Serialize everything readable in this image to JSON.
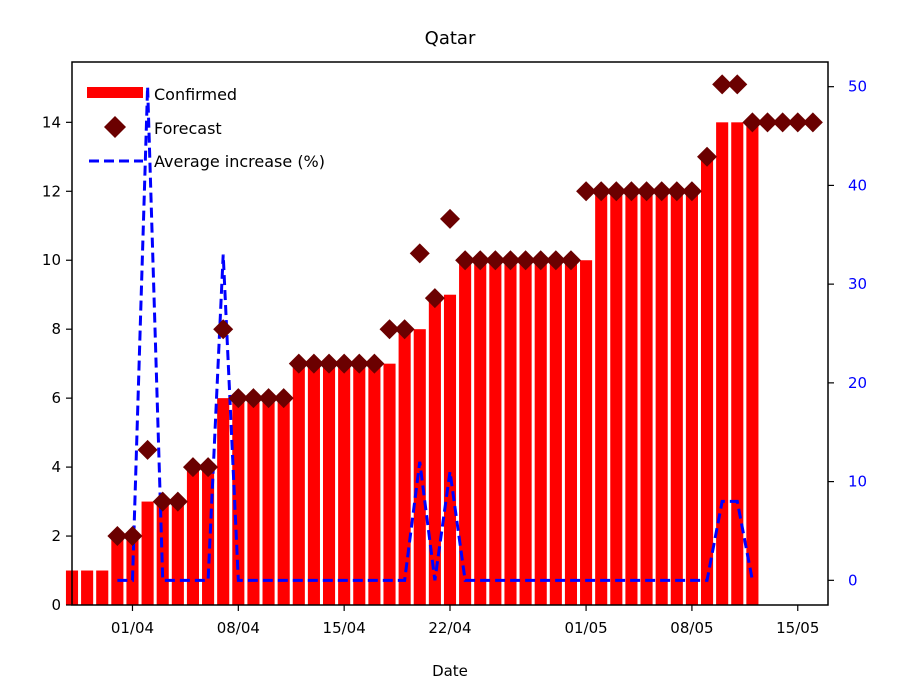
{
  "chart_data": {
    "type": "bar",
    "title": "Qatar",
    "xlabel": "Date",
    "ylabel": "",
    "y2label": "",
    "ylim": [
      0,
      15.75
    ],
    "y2lim": [
      -2.5,
      52.5
    ],
    "x_range": [
      "2020-03-28",
      "2020-05-17"
    ],
    "xticks": [
      {
        "date": "2020-04-01",
        "label": "01/04"
      },
      {
        "date": "2020-04-08",
        "label": "08/04"
      },
      {
        "date": "2020-04-15",
        "label": "15/04"
      },
      {
        "date": "2020-04-22",
        "label": "22/04"
      },
      {
        "date": "2020-05-01",
        "label": "01/05"
      },
      {
        "date": "2020-05-08",
        "label": "08/05"
      },
      {
        "date": "2020-05-15",
        "label": "15/05"
      }
    ],
    "yticks": [
      0,
      2,
      4,
      6,
      8,
      10,
      12,
      14
    ],
    "y2ticks": [
      0,
      10,
      20,
      30,
      40,
      50
    ],
    "legend_position": "upper-left",
    "grid": false,
    "colors": {
      "confirmed": "#ff0000",
      "forecast": "#6b0000",
      "average_increase": "#0000ff",
      "right_axis_ticks": "#0000ff",
      "text": "#000000"
    },
    "series": [
      {
        "name": "Confirmed",
        "kind": "bar",
        "axis": "left",
        "x": [
          "2020-03-28",
          "2020-03-29",
          "2020-03-30",
          "2020-03-31",
          "2020-04-01",
          "2020-04-02",
          "2020-04-03",
          "2020-04-04",
          "2020-04-05",
          "2020-04-06",
          "2020-04-07",
          "2020-04-08",
          "2020-04-09",
          "2020-04-10",
          "2020-04-11",
          "2020-04-12",
          "2020-04-13",
          "2020-04-14",
          "2020-04-15",
          "2020-04-16",
          "2020-04-17",
          "2020-04-18",
          "2020-04-19",
          "2020-04-20",
          "2020-04-21",
          "2020-04-22",
          "2020-04-23",
          "2020-04-24",
          "2020-04-25",
          "2020-04-26",
          "2020-04-27",
          "2020-04-28",
          "2020-04-29",
          "2020-04-30",
          "2020-05-01",
          "2020-05-02",
          "2020-05-03",
          "2020-05-04",
          "2020-05-05",
          "2020-05-06",
          "2020-05-07",
          "2020-05-08",
          "2020-05-09",
          "2020-05-10",
          "2020-05-11",
          "2020-05-12"
        ],
        "values": [
          1,
          1,
          1,
          2,
          2,
          3,
          3,
          3,
          4,
          4,
          6,
          6,
          6,
          6,
          6,
          7,
          7,
          7,
          7,
          7,
          7,
          7,
          8,
          8,
          9,
          9,
          10,
          10,
          10,
          10,
          10,
          10,
          10,
          10,
          10,
          12,
          12,
          12,
          12,
          12,
          12,
          12,
          13,
          14,
          14,
          14
        ]
      },
      {
        "name": "Forecast",
        "kind": "marker",
        "axis": "left",
        "x": [
          "2020-03-31",
          "2020-04-01",
          "2020-04-02",
          "2020-04-03",
          "2020-04-04",
          "2020-04-05",
          "2020-04-06",
          "2020-04-07",
          "2020-04-08",
          "2020-04-09",
          "2020-04-10",
          "2020-04-11",
          "2020-04-12",
          "2020-04-13",
          "2020-04-14",
          "2020-04-15",
          "2020-04-16",
          "2020-04-17",
          "2020-04-18",
          "2020-04-19",
          "2020-04-20",
          "2020-04-21",
          "2020-04-22",
          "2020-04-23",
          "2020-04-24",
          "2020-04-25",
          "2020-04-26",
          "2020-04-27",
          "2020-04-28",
          "2020-04-29",
          "2020-04-30",
          "2020-05-01",
          "2020-05-02",
          "2020-05-03",
          "2020-05-04",
          "2020-05-05",
          "2020-05-06",
          "2020-05-07",
          "2020-05-08",
          "2020-05-09",
          "2020-05-10",
          "2020-05-11",
          "2020-05-12",
          "2020-05-13",
          "2020-05-14",
          "2020-05-15",
          "2020-05-16"
        ],
        "values": [
          2,
          2,
          4.5,
          3,
          3,
          4,
          4,
          8,
          6,
          6,
          6,
          6,
          7,
          7,
          7,
          7,
          7,
          7,
          8,
          8,
          10.2,
          8.9,
          11.2,
          10,
          10,
          10,
          10,
          10,
          10,
          10,
          10,
          12,
          12,
          12,
          12,
          12,
          12,
          12,
          12,
          13,
          15.1,
          15.1,
          14,
          14,
          14,
          14,
          14
        ]
      },
      {
        "name": "Average increase (%)",
        "kind": "line",
        "axis": "right",
        "x": [
          "2020-03-31",
          "2020-04-01",
          "2020-04-02",
          "2020-04-03",
          "2020-04-04",
          "2020-04-05",
          "2020-04-06",
          "2020-04-07",
          "2020-04-08",
          "2020-04-09",
          "2020-04-10",
          "2020-04-11",
          "2020-04-12",
          "2020-04-13",
          "2020-04-14",
          "2020-04-15",
          "2020-04-16",
          "2020-04-17",
          "2020-04-18",
          "2020-04-19",
          "2020-04-20",
          "2020-04-21",
          "2020-04-22",
          "2020-04-23",
          "2020-04-24",
          "2020-04-25",
          "2020-04-26",
          "2020-04-27",
          "2020-04-28",
          "2020-04-29",
          "2020-04-30",
          "2020-05-01",
          "2020-05-02",
          "2020-05-03",
          "2020-05-04",
          "2020-05-05",
          "2020-05-06",
          "2020-05-07",
          "2020-05-08",
          "2020-05-09",
          "2020-05-10",
          "2020-05-11",
          "2020-05-12"
        ],
        "values": [
          0,
          0,
          50,
          0,
          0,
          0,
          0,
          33,
          0,
          0,
          0,
          0,
          0,
          0,
          0,
          0,
          0,
          0,
          0,
          0,
          12,
          0,
          11,
          0,
          0,
          0,
          0,
          0,
          0,
          0,
          0,
          0,
          0,
          0,
          0,
          0,
          0,
          0,
          0,
          0,
          8,
          8,
          0
        ]
      }
    ]
  }
}
